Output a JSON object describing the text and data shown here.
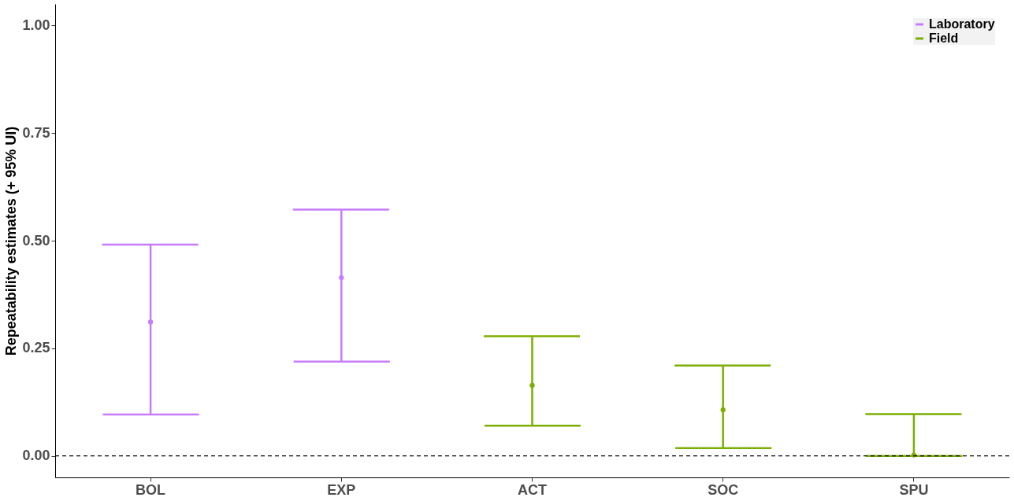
{
  "chart_data": {
    "type": "scatter",
    "ylabel": "Repeatability estimates (+ 95% UI)",
    "categories": [
      "BOL",
      "EXP",
      "ACT",
      "SOC",
      "SPU"
    ],
    "series": [
      {
        "name": "Laboratory",
        "color": "#c77cff",
        "values": [
          0.311,
          0.414,
          null,
          null,
          null
        ],
        "errors": [
          [
            0.096,
            0.491
          ],
          [
            0.219,
            0.572
          ],
          null,
          null,
          null
        ]
      },
      {
        "name": "Field",
        "color": "#7cae00",
        "values": [
          null,
          null,
          0.164,
          0.107,
          0.002
        ],
        "errors": [
          null,
          null,
          [
            0.07,
            0.278
          ],
          [
            0.018,
            0.21
          ],
          [
            0.0,
            0.097
          ]
        ]
      }
    ],
    "ylim": [
      -0.05,
      1.05
    ],
    "yticks": [
      {
        "value": 0,
        "label": "0.00"
      },
      {
        "value": 0.25,
        "label": "0.25"
      },
      {
        "value": 0.5,
        "label": "0.50"
      },
      {
        "value": 0.75,
        "label": "0.75"
      },
      {
        "value": 1,
        "label": "1.00"
      }
    ],
    "ref_lines": [
      {
        "axis": "y",
        "value": 0,
        "line_style": "dashed",
        "color": "#000000"
      }
    ],
    "grid": false,
    "legend": "top right",
    "marker": "circle"
  }
}
